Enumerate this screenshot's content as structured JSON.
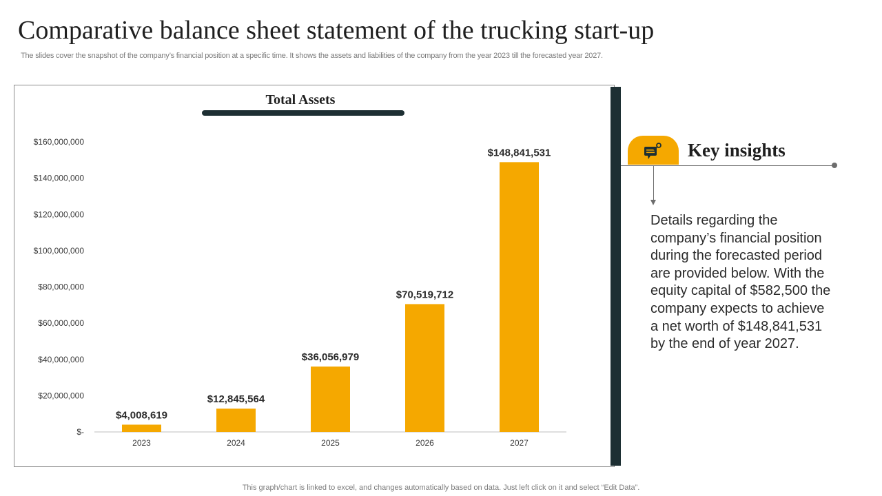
{
  "header": {
    "title": "Comparative balance sheet statement of the trucking start-up",
    "subtitle": "The slides cover the snapshot of the company’s financial position at a specific time. It shows the assets and liabilities of the company from the year  2023 till the forecasted year 2027."
  },
  "chart_data": {
    "type": "bar",
    "title": "Total Assets",
    "categories": [
      "2023",
      "2024",
      "2025",
      "2026",
      "2027"
    ],
    "values": [
      4008619,
      12845564,
      36056979,
      70519712,
      148841531
    ],
    "data_labels": [
      "$4,008,619",
      "$12,845,564",
      "$36,056,979",
      "$70,519,712",
      "$148,841,531"
    ],
    "ylim": [
      0,
      160000000
    ],
    "yticks": [
      0,
      20000000,
      40000000,
      60000000,
      80000000,
      100000000,
      120000000,
      140000000,
      160000000
    ],
    "ytick_labels": [
      "$-",
      "$20,000,000",
      "$40,000,000",
      "$60,000,000",
      "$80,000,000",
      "$100,000,000",
      "$120,000,000",
      "$140,000,000",
      "$160,000,000"
    ],
    "xlabel": "",
    "ylabel": "",
    "grid": false,
    "bar_color": "#f5a800"
  },
  "insights": {
    "title": "Key insights",
    "icon": "chat-bubble-key-icon",
    "text": "Details regarding the company’s financial position during the forecasted period are provided below. With the equity capital of $582,500 the company expects to achieve a net worth of $148,841,531 by the end of year 2027."
  },
  "footer": {
    "note": "This graph/chart is linked to excel,  and changes automatically based on data. Just left click on it and select “Edit Data”."
  },
  "colors": {
    "accent": "#f5a800",
    "dark": "#1d2f33"
  }
}
